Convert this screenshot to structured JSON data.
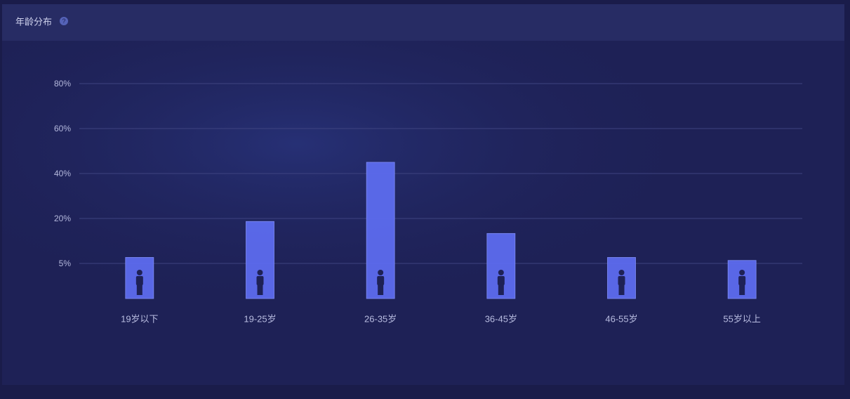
{
  "chart_data": {
    "type": "bar",
    "title": "年龄分布",
    "help_icon": "?",
    "categories": [
      "19岁以下",
      "19-25岁",
      "26-35岁",
      "36-45岁",
      "46-55岁",
      "55岁以上"
    ],
    "values": [
      7,
      19,
      45,
      15,
      7,
      6
    ],
    "color": "#5d6cee",
    "ylim": [
      0,
      80
    ],
    "yticks": [
      {
        "value": 5,
        "label": "5%"
      },
      {
        "value": 20,
        "label": "20%"
      },
      {
        "value": 40,
        "label": "40%"
      },
      {
        "value": 60,
        "label": "60%"
      },
      {
        "value": 80,
        "label": "80%"
      }
    ],
    "grid": true
  }
}
